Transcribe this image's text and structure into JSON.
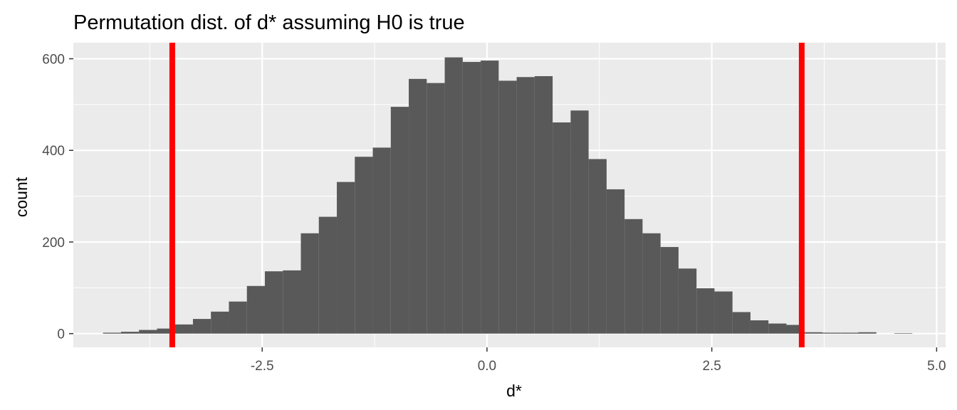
{
  "chart_data": {
    "type": "bar",
    "title": "Permutation dist. of d* assuming H0 is true",
    "xlabel": "d*",
    "ylabel": "count",
    "xlim": [
      -4.6,
      5.1
    ],
    "ylim": [
      -30,
      635
    ],
    "x_ticks": [
      -2.5,
      0.0,
      2.5,
      5.0
    ],
    "x_tick_labels": [
      "-2.5",
      "0.0",
      "2.5",
      "5.0"
    ],
    "y_ticks": [
      0,
      200,
      400,
      600
    ],
    "y_tick_labels": [
      "0",
      "200",
      "400",
      "600"
    ],
    "grid": true,
    "bin_width": 0.2,
    "bins": [
      {
        "x0": -4.27,
        "count": 2
      },
      {
        "x0": -4.07,
        "count": 4
      },
      {
        "x0": -3.87,
        "count": 8
      },
      {
        "x0": -3.67,
        "count": 11
      },
      {
        "x0": -3.47,
        "count": 20
      },
      {
        "x0": -3.27,
        "count": 32
      },
      {
        "x0": -3.07,
        "count": 48
      },
      {
        "x0": -2.87,
        "count": 70
      },
      {
        "x0": -2.67,
        "count": 104
      },
      {
        "x0": -2.47,
        "count": 136
      },
      {
        "x0": -2.27,
        "count": 138
      },
      {
        "x0": -2.07,
        "count": 219
      },
      {
        "x0": -1.87,
        "count": 255
      },
      {
        "x0": -1.67,
        "count": 331
      },
      {
        "x0": -1.47,
        "count": 386
      },
      {
        "x0": -1.27,
        "count": 406
      },
      {
        "x0": -1.07,
        "count": 495
      },
      {
        "x0": -0.87,
        "count": 556
      },
      {
        "x0": -0.67,
        "count": 547
      },
      {
        "x0": -0.47,
        "count": 603
      },
      {
        "x0": -0.27,
        "count": 593
      },
      {
        "x0": -0.07,
        "count": 596
      },
      {
        "x0": 0.13,
        "count": 552
      },
      {
        "x0": 0.33,
        "count": 560
      },
      {
        "x0": 0.53,
        "count": 562
      },
      {
        "x0": 0.73,
        "count": 461
      },
      {
        "x0": 0.93,
        "count": 487
      },
      {
        "x0": 1.13,
        "count": 381
      },
      {
        "x0": 1.33,
        "count": 315
      },
      {
        "x0": 1.53,
        "count": 250
      },
      {
        "x0": 1.73,
        "count": 219
      },
      {
        "x0": 1.93,
        "count": 189
      },
      {
        "x0": 2.13,
        "count": 142
      },
      {
        "x0": 2.33,
        "count": 99
      },
      {
        "x0": 2.53,
        "count": 92
      },
      {
        "x0": 2.73,
        "count": 47
      },
      {
        "x0": 2.93,
        "count": 29
      },
      {
        "x0": 3.13,
        "count": 22
      },
      {
        "x0": 3.33,
        "count": 19
      },
      {
        "x0": 3.53,
        "count": 3
      },
      {
        "x0": 3.73,
        "count": 2
      },
      {
        "x0": 3.93,
        "count": 2
      },
      {
        "x0": 4.13,
        "count": 3
      },
      {
        "x0": 4.53,
        "count": 1
      }
    ],
    "vlines": [
      -3.5,
      3.5
    ],
    "bar_color": "#595959",
    "vline_color": "#ff0000",
    "panel_color": "#ebebeb",
    "grid_color": "#ffffff"
  }
}
